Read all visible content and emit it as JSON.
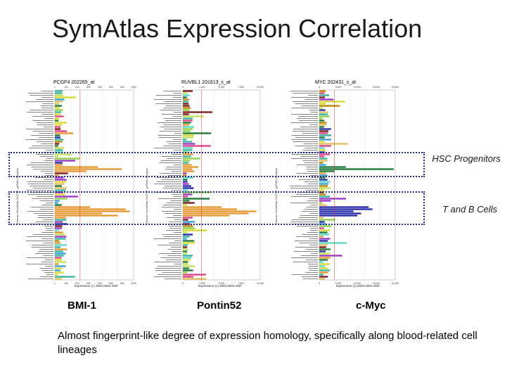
{
  "slide": {
    "title": "SymAtlas Expression Correlation",
    "caption": "Almost fingerprint-like degree of expression homology, specifically along blood-related cell lineages",
    "regions": [
      "HSC Progenitors",
      "T and B Cells"
    ]
  },
  "panels": [
    {
      "probe": "PCGF4 202265_at",
      "gene": "BMI-1",
      "side_label": "Human GeneAtlas GNF1H, gcRMA Samples",
      "footer": "Expression     (c) 2003,2004 GNF",
      "ticks": [
        "1",
        "100",
        "200",
        "300",
        "400",
        "500",
        "800",
        "1000"
      ]
    },
    {
      "probe": "RUVBL1 201613_s_at",
      "gene": "Pontin52",
      "side_label": "Human GeneAtlas GNF1H, gcRMA Samples",
      "footer": "Expression     (c) 2003,2004 GNF",
      "ticks": [
        "0",
        "2,500",
        "5,000",
        "7,500",
        "10,000"
      ]
    },
    {
      "probe": "MYC 202431_s_at",
      "gene": "c-Myc",
      "side_label": "Human GeneAtlas GNF1H, gcRMA Samples",
      "footer": "Expression     (c) 2003,2004 GNF",
      "ticks": [
        "0",
        "5,000",
        "10,000",
        "15,000",
        "20,000"
      ]
    }
  ],
  "colors": {
    "box_border": "#1f2a8a",
    "median_line": "#d23a3a",
    "palette": [
      "#2a2fa8",
      "#3bb3a0",
      "#8fd14f",
      "#c3e05a",
      "#e59a35",
      "#9b3cc4",
      "#d9d93a",
      "#3aa0d8",
      "#b8860b",
      "#1f7a3a",
      "#d8488a",
      "#5fd7c8",
      "#7a1f1f",
      "#e0c060"
    ]
  }
}
